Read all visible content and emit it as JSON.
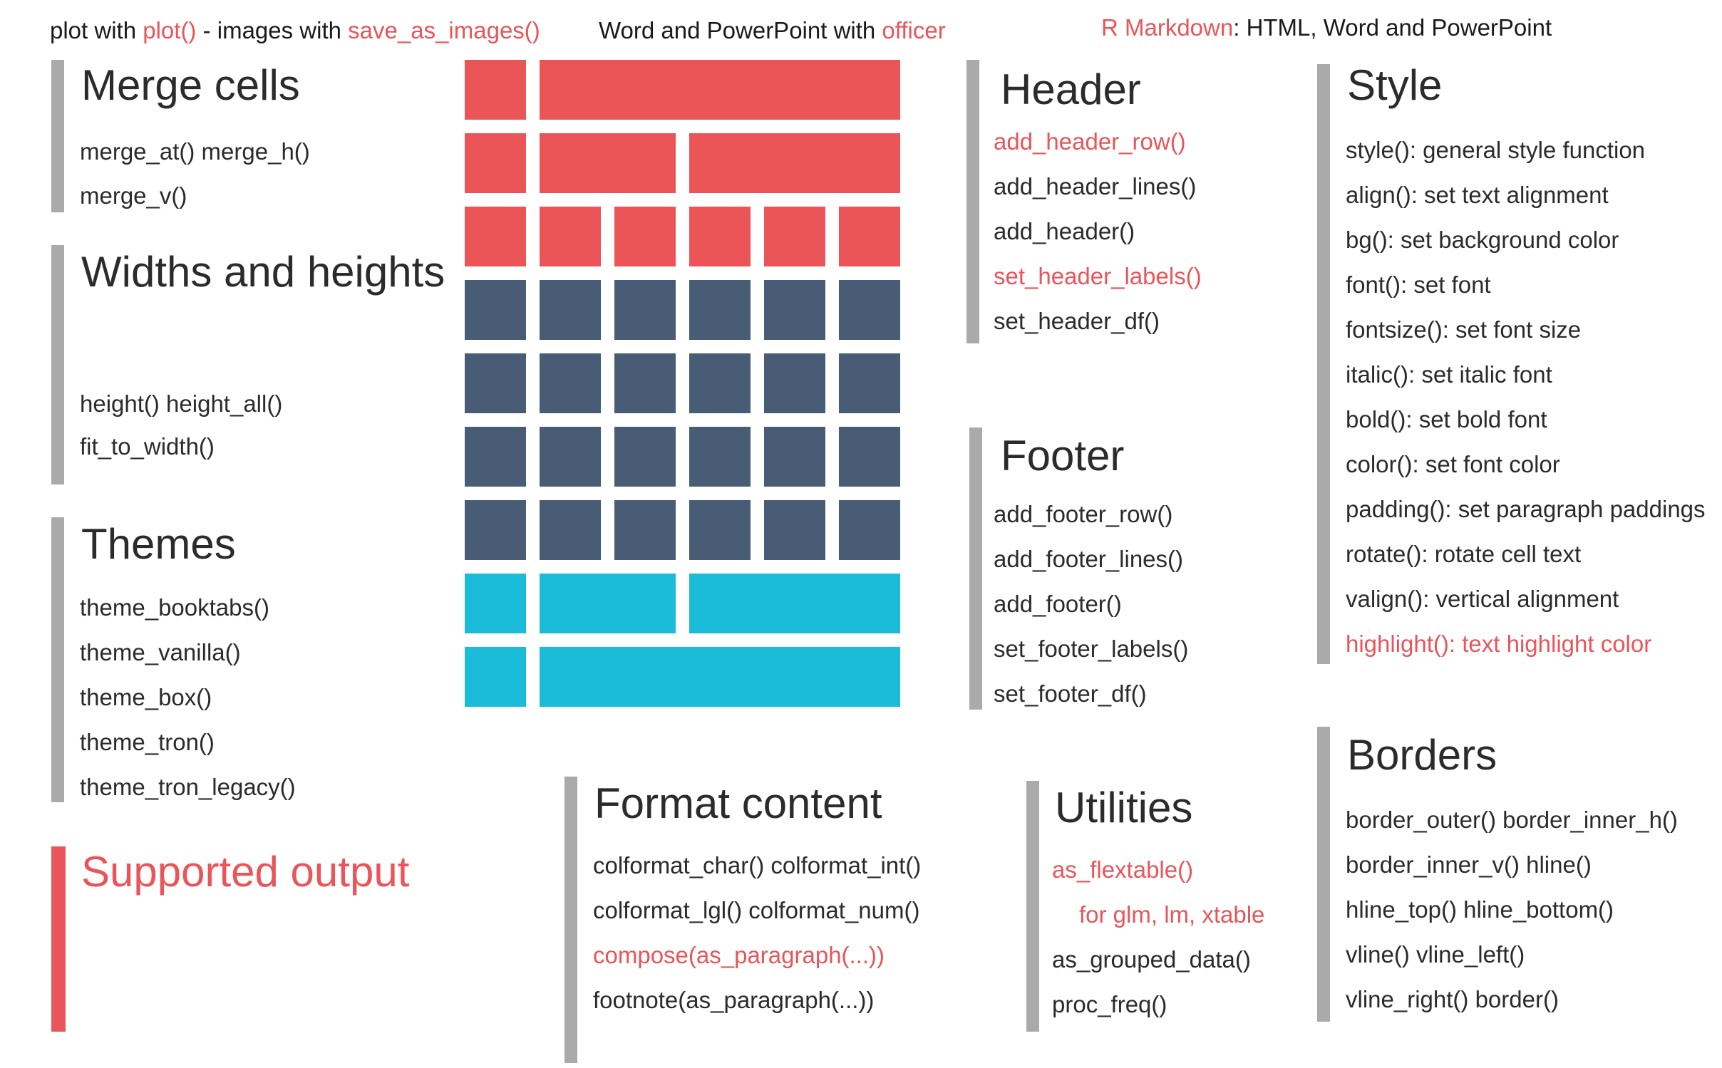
{
  "top_lines": {
    "plot": {
      "a": "plot with ",
      "b": "plot()",
      "c": " - images with ",
      "d": "save_as_images()"
    },
    "officer": {
      "a": "Word and PowerPoint with ",
      "b": "officer"
    },
    "rmarkdown": {
      "a": "R Markdown",
      "b": ": HTML, Word and PowerPoint"
    }
  },
  "sections": {
    "merge_cells": {
      "title": "Merge cells",
      "items": [
        "merge_at() merge_h()",
        "merge_v()"
      ]
    },
    "widths_heights": {
      "title": "Widths and heights",
      "items": [
        "height() height_all()",
        "fit_to_width()"
      ]
    },
    "themes": {
      "title": "Themes",
      "items": [
        "theme_booktabs()",
        "theme_vanilla()",
        "theme_box()",
        "theme_tron()",
        "theme_tron_legacy()"
      ]
    },
    "supported_output": {
      "title": "Supported output"
    },
    "format_content": {
      "title": "Format content",
      "items": [
        "colformat_char() colformat_int()",
        "colformat_lgl() colformat_num()",
        "compose(as_paragraph(...))",
        "footnote(as_paragraph(...))"
      ]
    },
    "header": {
      "title": "Header",
      "items": [
        "add_header_row()",
        "add_header_lines()",
        "add_header()",
        "set_header_labels()",
        "set_header_df()"
      ]
    },
    "footer": {
      "title": "Footer",
      "items": [
        "add_footer_row()",
        "add_footer_lines()",
        "add_footer()",
        "set_footer_labels()",
        "set_footer_df()"
      ]
    },
    "utilities": {
      "title": "Utilities",
      "items": [
        "as_flextable()",
        "for glm, lm, xtable",
        "as_grouped_data()",
        "proc_freq()"
      ]
    },
    "style": {
      "title": "Style",
      "items": [
        "style(): general style function",
        "align(): set text alignment",
        "bg(): set background color",
        "font(): set font",
        "fontsize(): set font size",
        "italic(): set italic font",
        "bold(): set bold font",
        "color(): set font color",
        "padding(): set paragraph paddings",
        "rotate(): rotate cell text",
        "valign(): vertical alignment",
        "highlight(): text highlight color"
      ]
    },
    "borders": {
      "title": "Borders",
      "items": [
        "border_outer() border_inner_h()",
        "border_inner_v() hline()",
        "hline_top() hline_bottom()",
        "vline() vline_left()",
        "vline_right() border()"
      ]
    }
  },
  "colors": {
    "accent": "#e8555a",
    "header_cells": "#ec5557",
    "body_cells": "#485d75",
    "footer_cells": "#1bbcd9",
    "bar": "#aaaaaa",
    "text": "#2b2b2b"
  },
  "table_graphic": {
    "columns": 6,
    "rows": [
      {
        "part": "header",
        "spans": [
          1,
          5
        ]
      },
      {
        "part": "header",
        "spans": [
          1,
          2,
          3
        ]
      },
      {
        "part": "header",
        "spans": [
          1,
          1,
          1,
          1,
          1,
          1
        ]
      },
      {
        "part": "body",
        "spans": [
          1,
          1,
          1,
          1,
          1,
          1
        ]
      },
      {
        "part": "body",
        "spans": [
          1,
          1,
          1,
          1,
          1,
          1
        ]
      },
      {
        "part": "body",
        "spans": [
          1,
          1,
          1,
          1,
          1,
          1
        ]
      },
      {
        "part": "body",
        "spans": [
          1,
          1,
          1,
          1,
          1,
          1
        ]
      },
      {
        "part": "footer",
        "spans": [
          1,
          2,
          3
        ]
      },
      {
        "part": "footer",
        "spans": [
          1,
          5
        ]
      }
    ]
  }
}
